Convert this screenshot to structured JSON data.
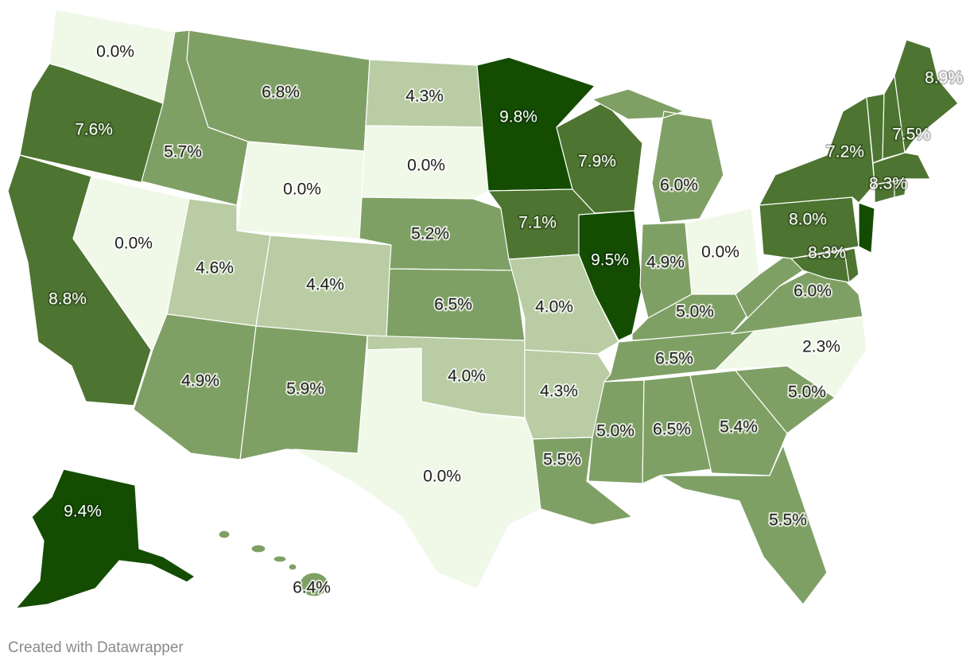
{
  "credit": "Created with Datawrapper",
  "colors": {
    "z0": "#f0f8e8",
    "z1": "#b9cca3",
    "z2": "#7fa065",
    "z3": "#4d7430",
    "z4": "#144d02"
  },
  "states": [
    {
      "id": "WA",
      "value": "0.0%",
      "level": 0
    },
    {
      "id": "OR",
      "value": "7.6%",
      "level": 3
    },
    {
      "id": "CA",
      "value": "8.8%",
      "level": 3
    },
    {
      "id": "NV",
      "value": "0.0%",
      "level": 0
    },
    {
      "id": "ID",
      "value": "5.7%",
      "level": 2
    },
    {
      "id": "MT",
      "value": "6.8%",
      "level": 2
    },
    {
      "id": "WY",
      "value": "0.0%",
      "level": 0
    },
    {
      "id": "UT",
      "value": "4.6%",
      "level": 1
    },
    {
      "id": "AZ",
      "value": "4.9%",
      "level": 2
    },
    {
      "id": "CO",
      "value": "4.4%",
      "level": 1
    },
    {
      "id": "NM",
      "value": "5.9%",
      "level": 2
    },
    {
      "id": "ND",
      "value": "4.3%",
      "level": 1
    },
    {
      "id": "SD",
      "value": "0.0%",
      "level": 0
    },
    {
      "id": "NE",
      "value": "5.2%",
      "level": 2
    },
    {
      "id": "KS",
      "value": "6.5%",
      "level": 2
    },
    {
      "id": "OK",
      "value": "4.0%",
      "level": 1
    },
    {
      "id": "TX",
      "value": "0.0%",
      "level": 0
    },
    {
      "id": "MN",
      "value": "9.8%",
      "level": 4
    },
    {
      "id": "IA",
      "value": "7.1%",
      "level": 3
    },
    {
      "id": "MO",
      "value": "4.0%",
      "level": 1
    },
    {
      "id": "AR",
      "value": "4.3%",
      "level": 1
    },
    {
      "id": "LA",
      "value": "5.5%",
      "level": 2
    },
    {
      "id": "WI",
      "value": "7.9%",
      "level": 3
    },
    {
      "id": "IL",
      "value": "9.5%",
      "level": 4
    },
    {
      "id": "MI",
      "value": "6.0%",
      "level": 2
    },
    {
      "id": "IN",
      "value": "4.9%",
      "level": 2
    },
    {
      "id": "OH",
      "value": "0.0%",
      "level": 0
    },
    {
      "id": "KY",
      "value": "5.0%",
      "level": 2
    },
    {
      "id": "TN",
      "value": "6.5%",
      "level": 2
    },
    {
      "id": "MS",
      "value": "5.0%",
      "level": 2
    },
    {
      "id": "AL",
      "value": "6.5%",
      "level": 2
    },
    {
      "id": "GA",
      "value": "5.4%",
      "level": 2
    },
    {
      "id": "FL",
      "value": "5.5%",
      "level": 2
    },
    {
      "id": "SC",
      "value": "5.0%",
      "level": 2
    },
    {
      "id": "NC",
      "value": "2.3%",
      "level": 0
    },
    {
      "id": "VA",
      "value": "6.0%",
      "level": 2
    },
    {
      "id": "WV",
      "value": "",
      "level": 2
    },
    {
      "id": "PA",
      "value": "8.0%",
      "level": 3
    },
    {
      "id": "NY",
      "value": "7.2%",
      "level": 3
    },
    {
      "id": "NJ",
      "value": "",
      "level": 4
    },
    {
      "id": "MD",
      "value": "8.3%",
      "level": 3
    },
    {
      "id": "DE",
      "value": "",
      "level": 3
    },
    {
      "id": "VT",
      "value": "",
      "level": 3
    },
    {
      "id": "NH",
      "value": "7.5%",
      "level": 3
    },
    {
      "id": "ME",
      "value": "8.9%",
      "level": 3
    },
    {
      "id": "MA",
      "value": "8.3%",
      "level": 3
    },
    {
      "id": "CT",
      "value": "",
      "level": 3
    },
    {
      "id": "RI",
      "value": "",
      "level": 3
    },
    {
      "id": "AK",
      "value": "9.4%",
      "level": 4
    },
    {
      "id": "HI",
      "value": "6.4%",
      "level": 2
    }
  ]
}
